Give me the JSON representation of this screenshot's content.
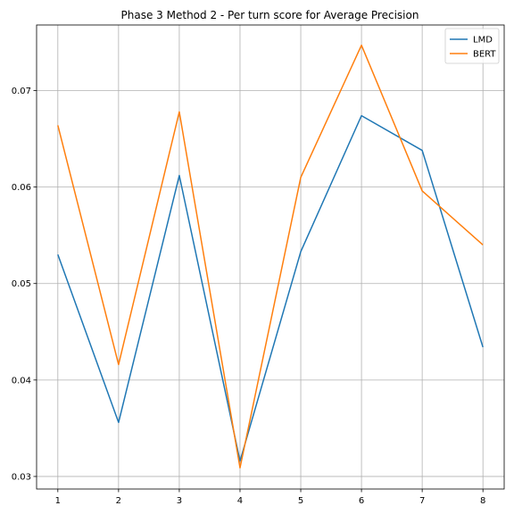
{
  "chart_data": {
    "type": "line",
    "title": "Phase 3 Method 2 - Per turn score for Average Precision",
    "xlabel": "",
    "ylabel": "",
    "x": [
      1,
      2,
      3,
      4,
      5,
      6,
      7,
      8
    ],
    "x_ticks": [
      "1",
      "2",
      "3",
      "4",
      "5",
      "6",
      "7",
      "8"
    ],
    "y_ticks": [
      "0.03",
      "0.04",
      "0.05",
      "0.06",
      "0.07"
    ],
    "xlim": [
      0.65,
      8.35
    ],
    "ylim": [
      0.0287,
      0.0768
    ],
    "grid": true,
    "legend_position": "top-right",
    "series": [
      {
        "name": "LMD",
        "color": "#1f77b4",
        "values": [
          0.053,
          0.0356,
          0.0612,
          0.0316,
          0.0533,
          0.0674,
          0.0638,
          0.0434
        ]
      },
      {
        "name": "BERT",
        "color": "#ff7f0e",
        "values": [
          0.0664,
          0.0416,
          0.0678,
          0.0309,
          0.061,
          0.0747,
          0.0596,
          0.054
        ]
      }
    ]
  }
}
